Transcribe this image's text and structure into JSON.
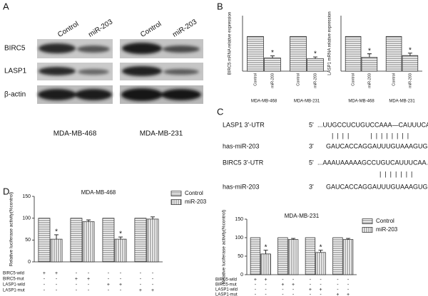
{
  "panels": [
    "A",
    "B",
    "C",
    "D"
  ],
  "blot": {
    "lanes": [
      "Control",
      "miR-203",
      "Control",
      "miR-203"
    ],
    "rows": [
      "BIRC5",
      "LASP1",
      "β-actin"
    ],
    "cell_lines": [
      "MDA-MB-468",
      "MDA-MB-231"
    ]
  },
  "sequences": [
    {
      "gene": "LASP1 3'-UTR",
      "end5": "5'",
      "utr": "...UUGCCUCUGUCCAAA—CAUUUCAU...",
      "pairing": "|  |  |  |            |  |  |  |  |  |  |  |",
      "mirna": "has-miR-203",
      "end3": "3'",
      "mirna_seq": "GAUCACCAGGAUUUGUAAAGUG"
    },
    {
      "gene": "BIRC5 3'-UTR",
      "end5": "5'",
      "utr": "...AAAUAAAAAGCCUGUCAUUUCAA...",
      "pairing": "|  |  |  |  |  |  |",
      "mirna": "has-miR-203",
      "end3": "3'",
      "mirna_seq": "GAUCACCAGGAUUUGUAAAGUG"
    }
  ],
  "chart_data": [
    {
      "type": "bar",
      "ylabel": "BIRC5 mRNA relative expression",
      "categories": [
        "MDA-MB-468",
        "MDA-MB-231"
      ],
      "ylim": [
        0,
        1.6
      ],
      "series": [
        {
          "name": "Control",
          "color": "#444444",
          "hatch": "horizontal",
          "values": [
            1,
            1
          ]
        },
        {
          "name": "miR-203",
          "color": "#444444",
          "hatch": "horizontal",
          "values": [
            0.38,
            0.36
          ],
          "errors": [
            0.06,
            0.05
          ],
          "significance": [
            "*",
            "*"
          ]
        }
      ]
    },
    {
      "type": "bar",
      "ylabel": "LASP1 mRNA relative expression",
      "categories": [
        "MDA-MB-468",
        "MDA-MB-231"
      ],
      "ylim": [
        0,
        1.6
      ],
      "series": [
        {
          "name": "Control",
          "color": "#444444",
          "hatch": "horizontal",
          "values": [
            1,
            1
          ]
        },
        {
          "name": "miR-203",
          "color": "#444444",
          "hatch": "horizontal",
          "values": [
            0.4,
            0.45
          ],
          "errors": [
            0.1,
            0.07
          ],
          "significance": [
            "*",
            "*"
          ]
        }
      ]
    },
    {
      "type": "bar",
      "title": "MDA-MB-468",
      "ylabel": "Relative luciferase activity(%control)",
      "ylim": [
        0,
        150
      ],
      "yticks": [
        0,
        50,
        100,
        150
      ],
      "legend": "right",
      "series": [
        {
          "name": "Control",
          "color": "#444444",
          "hatch": "horizontal",
          "values": [
            100,
            100,
            100,
            100
          ]
        },
        {
          "name": "miR-203",
          "color": "#444444",
          "hatch": "vertical",
          "values": [
            52,
            92,
            52,
            98
          ],
          "errors": [
            10,
            4,
            5,
            5
          ],
          "significance": [
            "*",
            null,
            "*",
            null
          ]
        }
      ],
      "conditions": [
        {
          "name": "BIRC5-wild",
          "signs": [
            "+",
            "+",
            "-",
            "-",
            "-",
            "-",
            "-",
            "-"
          ]
        },
        {
          "name": "BIRC5-mut",
          "signs": [
            "-",
            "-",
            "+",
            "+",
            "-",
            "-",
            "-",
            "-"
          ]
        },
        {
          "name": "LASP1-wild",
          "signs": [
            "-",
            "-",
            "-",
            "-",
            "+",
            "+",
            "-",
            "-"
          ]
        },
        {
          "name": "LASP1-mut",
          "signs": [
            "-",
            "-",
            "-",
            "-",
            "-",
            "-",
            "+",
            "+"
          ]
        }
      ]
    },
    {
      "type": "bar",
      "title": "MDA-MB-231",
      "ylabel": "Relative luciferase activity(%control)",
      "ylim": [
        0,
        150
      ],
      "yticks": [
        0,
        50,
        100,
        150
      ],
      "legend": "right",
      "series": [
        {
          "name": "Control",
          "color": "#444444",
          "hatch": "horizontal",
          "values": [
            100,
            100,
            100,
            100
          ]
        },
        {
          "name": "miR-203",
          "color": "#444444",
          "hatch": "vertical",
          "values": [
            56,
            95,
            60,
            95
          ],
          "errors": [
            10,
            3,
            6,
            3
          ],
          "significance": [
            "*",
            null,
            "*",
            null
          ]
        }
      ],
      "conditions": [
        {
          "name": "BIRC5-wild",
          "signs": [
            "+",
            "+",
            "-",
            "-",
            "-",
            "-",
            "-",
            "-"
          ]
        },
        {
          "name": "BIRC5-mut",
          "signs": [
            "-",
            "-",
            "+",
            "+",
            "-",
            "-",
            "-",
            "-"
          ]
        },
        {
          "name": "LASP1-wild",
          "signs": [
            "-",
            "-",
            "-",
            "-",
            "+",
            "+",
            "-",
            "-"
          ]
        },
        {
          "name": "LASP1-mut",
          "signs": [
            "-",
            "-",
            "-",
            "-",
            "-",
            "-",
            "+",
            "+"
          ]
        }
      ]
    }
  ]
}
